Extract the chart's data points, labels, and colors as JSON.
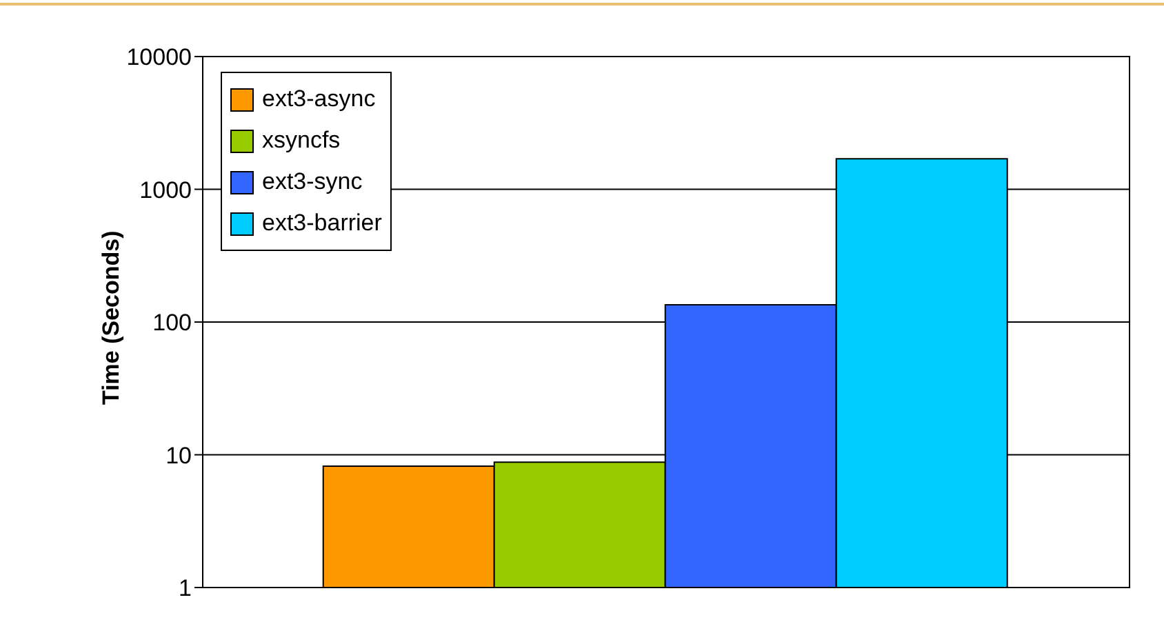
{
  "chart_data": {
    "type": "bar",
    "ylabel": "Time (Seconds)",
    "categories": [
      null
    ],
    "series": [
      {
        "name": "ext3-async",
        "color": "#ff9900",
        "values": [
          8.2
        ]
      },
      {
        "name": "xsyncfs",
        "color": "#99cc00",
        "values": [
          8.8
        ]
      },
      {
        "name": "ext3-sync",
        "color": "#3366ff",
        "values": [
          135
        ]
      },
      {
        "name": "ext3-barrier",
        "color": "#00ccff",
        "values": [
          1700
        ]
      }
    ],
    "log": true,
    "ylim": [
      1,
      10000
    ],
    "yticks": [
      1,
      10,
      100,
      1000,
      10000
    ],
    "grid": "y",
    "legend": "top left",
    "tick_labels": "y"
  }
}
